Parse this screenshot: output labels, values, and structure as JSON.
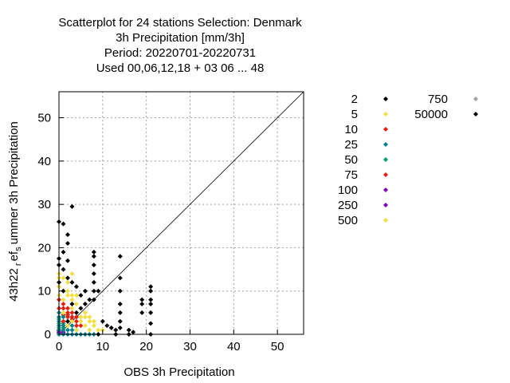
{
  "chart_data": {
    "type": "scatter",
    "title_lines": [
      "Scatterplot for   24 stations Selection: Denmark",
      "3h Precipitation [mm/3h]",
      "Period: 20220701-20220731",
      "Used  00,06,12,18  + 03 06 ... 48"
    ],
    "xlabel": "OBS 3h Precipitation",
    "ylabel": "43h22_ref_summer 3h Precipitation",
    "ylabel_display": {
      "base": "43h22",
      "sub1": "r",
      "mid": "ef",
      "sub2": "s",
      "end": "ummer 3h Precipitation"
    },
    "xlim": [
      0,
      56
    ],
    "ylim": [
      0,
      56
    ],
    "xticks": [
      0,
      10,
      20,
      30,
      40,
      50
    ],
    "yticks": [
      0,
      10,
      20,
      30,
      40,
      50
    ],
    "grid": true,
    "diagonal": true,
    "legend_position": "right, outside plot area",
    "colors": {
      "black": "#000000",
      "yellow": "#f0e040",
      "red": "#e51e10",
      "teal": "#00808a",
      "green": "#00a070",
      "purple": "#8000c0",
      "gray": "#a0a0a0"
    },
    "series": [
      {
        "name": "2",
        "color": "#000000",
        "points": [
          [
            0,
            26
          ],
          [
            1,
            25.5
          ],
          [
            2,
            23
          ],
          [
            2,
            21
          ],
          [
            2,
            17
          ],
          [
            2,
            13
          ],
          [
            3,
            12
          ],
          [
            4,
            11
          ],
          [
            3,
            29.5
          ],
          [
            0,
            17.5
          ],
          [
            0,
            16
          ],
          [
            1,
            19
          ],
          [
            1,
            15
          ],
          [
            8,
            19
          ],
          [
            8,
            18
          ],
          [
            8,
            16
          ],
          [
            8,
            14
          ],
          [
            8,
            12
          ],
          [
            8,
            10
          ],
          [
            8,
            8
          ],
          [
            14,
            18
          ],
          [
            14,
            13
          ],
          [
            14,
            10
          ],
          [
            14,
            7
          ],
          [
            14,
            5
          ],
          [
            14,
            3
          ],
          [
            14,
            1.5
          ],
          [
            21,
            11
          ],
          [
            21,
            10
          ],
          [
            21,
            8
          ],
          [
            21,
            7
          ],
          [
            21,
            5
          ],
          [
            21,
            2.5
          ],
          [
            21,
            0
          ],
          [
            19,
            8
          ],
          [
            19,
            7
          ],
          [
            19,
            5
          ],
          [
            6,
            10
          ],
          [
            9,
            10
          ],
          [
            7,
            8
          ],
          [
            5,
            6
          ],
          [
            4,
            5
          ],
          [
            11,
            2
          ],
          [
            12,
            1.5
          ],
          [
            10,
            3
          ],
          [
            13,
            1
          ],
          [
            16,
            1
          ],
          [
            17,
            0.5
          ],
          [
            6,
            7
          ],
          [
            5,
            9
          ],
          [
            3,
            7
          ],
          [
            9,
            0
          ],
          [
            13,
            0
          ],
          [
            16,
            0
          ],
          [
            2,
            3
          ],
          [
            1,
            10
          ],
          [
            0,
            12
          ]
        ]
      },
      {
        "name": "5",
        "color": "#f0e040",
        "points": [
          [
            0,
            14
          ],
          [
            0,
            13
          ],
          [
            0,
            12
          ],
          [
            0,
            11
          ],
          [
            1,
            10
          ],
          [
            2,
            9
          ],
          [
            3,
            8
          ],
          [
            4,
            7
          ],
          [
            5,
            6
          ],
          [
            6,
            5
          ],
          [
            7,
            4
          ],
          [
            8,
            3
          ],
          [
            1,
            13
          ],
          [
            2,
            12
          ],
          [
            2,
            10
          ],
          [
            3,
            9
          ],
          [
            3,
            6
          ],
          [
            4,
            5
          ],
          [
            5,
            4
          ],
          [
            6,
            4
          ],
          [
            7,
            3
          ],
          [
            8,
            2
          ],
          [
            9,
            1
          ],
          [
            10,
            1
          ],
          [
            3,
            14
          ],
          [
            4,
            9
          ],
          [
            1,
            8
          ],
          [
            0,
            9
          ],
          [
            6,
            2
          ],
          [
            5,
            3
          ],
          [
            7,
            1
          ],
          [
            4,
            1
          ],
          [
            3,
            3
          ],
          [
            2,
            2
          ],
          [
            1,
            5
          ]
        ]
      },
      {
        "name": "10",
        "color": "#e51e10",
        "points": [
          [
            0,
            8
          ],
          [
            1,
            7
          ],
          [
            2,
            6
          ],
          [
            3,
            5
          ],
          [
            4,
            4
          ],
          [
            1,
            6
          ],
          [
            2,
            5
          ],
          [
            3,
            4
          ],
          [
            0,
            6
          ],
          [
            4,
            3
          ],
          [
            5,
            2
          ],
          [
            2,
            4
          ],
          [
            1,
            3
          ]
        ]
      },
      {
        "name": "25",
        "color": "#00808a",
        "points": [
          [
            0,
            5
          ],
          [
            0,
            4
          ],
          [
            0,
            3
          ],
          [
            0,
            2
          ],
          [
            1,
            4
          ],
          [
            1,
            3
          ],
          [
            1,
            2
          ],
          [
            2,
            3
          ],
          [
            2,
            2
          ],
          [
            2,
            1
          ],
          [
            3,
            2
          ],
          [
            3,
            1
          ],
          [
            4,
            1
          ],
          [
            4,
            0
          ],
          [
            5,
            0
          ],
          [
            6,
            0
          ],
          [
            7,
            0
          ],
          [
            8,
            0
          ],
          [
            1,
            1
          ],
          [
            2,
            0
          ],
          [
            3,
            0
          ],
          [
            0,
            1
          ],
          [
            1,
            0
          ],
          [
            0,
            0
          ]
        ]
      },
      {
        "name": "50",
        "color": "#00a070",
        "points": [
          [
            0,
            3.5
          ],
          [
            1,
            2.5
          ],
          [
            0,
            2.5
          ],
          [
            1,
            1.5
          ],
          [
            0,
            1.5
          ]
        ]
      },
      {
        "name": "75",
        "color": "#e51e10",
        "points": [
          [
            2,
            4.5
          ],
          [
            3,
            3.5
          ],
          [
            1,
            4.5
          ],
          [
            4,
            2
          ]
        ]
      },
      {
        "name": "100",
        "color": "#8000c0",
        "points": [
          [
            0,
            1
          ],
          [
            1,
            0.5
          ],
          [
            0,
            0.5
          ],
          [
            0,
            0.2
          ]
        ]
      },
      {
        "name": "250",
        "color": "#8000c0",
        "points": [
          [
            0,
            0.8
          ],
          [
            1,
            0.2
          ]
        ]
      },
      {
        "name": "500",
        "color": "#f0e040",
        "points": [
          [
            0,
            0.3
          ],
          [
            0,
            0.6
          ]
        ]
      },
      {
        "name": "750",
        "color": "#a0a0a0",
        "points": []
      },
      {
        "name": "50000",
        "color": "#000000",
        "points": []
      }
    ]
  }
}
